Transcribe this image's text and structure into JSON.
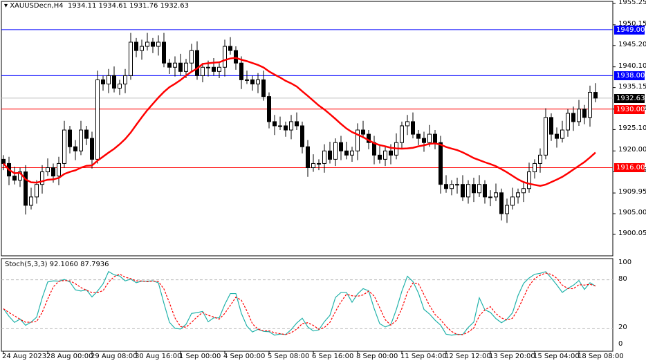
{
  "header": {
    "symbol_timeframe": "XAUUSDecn,H4",
    "ohlc": "1934.11 1934.61 1931.76 1932.63"
  },
  "stoch_label": "Stoch(5,3,3) 92.1060 87.7936",
  "colors": {
    "bull_candle": "#ffffff",
    "bear_candle": "#000000",
    "ma_line": "#ff0000",
    "stoch_main": "#20b2aa",
    "stoch_signal": "#ff0000",
    "blue_level": "#0000ff",
    "red_level": "#ff0000",
    "price_tag": "#000000"
  },
  "price_axis": {
    "max": 1955.25,
    "min": 1900.05,
    "labels": [
      "1955.25",
      "1950.15",
      "1945.20",
      "1940.10",
      "1935.15",
      "1930.00",
      "1925.10",
      "1920.00",
      "1915.05",
      "1909.95",
      "1905.00",
      "1900.05"
    ]
  },
  "levels": [
    {
      "price": 1949.0,
      "label": "1949.00",
      "color": "#0000ff"
    },
    {
      "price": 1938.0,
      "label": "1938.00",
      "color": "#0000ff"
    },
    {
      "price": 1930.0,
      "label": "1930.00",
      "color": "#ff0000"
    },
    {
      "price": 1916.0,
      "label": "1916.00",
      "color": "#ff0000"
    }
  ],
  "current_price": {
    "price": 1932.63,
    "label": "1932.63"
  },
  "stoch_axis": {
    "labels": [
      "100",
      "80",
      "20",
      "0"
    ],
    "levels": [
      100,
      80,
      20,
      0
    ]
  },
  "time_axis": [
    "24 Aug 2023",
    "28 Aug 00:00",
    "29 Aug 08:00",
    "30 Aug 16:00",
    "1 Sep 00:00",
    "4 Sep 00:00",
    "5 Sep 08:00",
    "6 Sep 16:00",
    "8 Sep 00:00",
    "11 Sep 04:00",
    "12 Sep 12:00",
    "13 Sep 20:00",
    "15 Sep 04:00",
    "18 Sep 08:00"
  ],
  "closes": [
    1917,
    1914,
    1913,
    1915,
    1907,
    1909,
    1912,
    1915,
    1916,
    1914,
    1917,
    1925,
    1921,
    1920,
    1925,
    1923,
    1918,
    1937,
    1936,
    1938,
    1935,
    1936,
    1938,
    1946,
    1944,
    1945,
    1946,
    1945,
    1946,
    1941,
    1940,
    1941,
    1939,
    1941,
    1944,
    1938,
    1940,
    1940,
    1939,
    1940,
    1945,
    1944,
    1941,
    1937,
    1937,
    1936,
    1937,
    1933,
    1927,
    1926,
    1926,
    1925,
    1927,
    1926,
    1921,
    1916,
    1917,
    1917,
    1920,
    1918,
    1922,
    1920,
    1919,
    1920,
    1925,
    1924,
    1922,
    1919,
    1918,
    1920,
    1919,
    1922,
    1926,
    1927,
    1924,
    1923,
    1922,
    1924,
    1922,
    1912,
    1911,
    1912,
    1912,
    1909,
    1912,
    1910,
    1912,
    1909,
    1909,
    1910,
    1905,
    1907,
    1909,
    1910,
    1911,
    1915,
    1917,
    1919,
    1928,
    1924,
    1923,
    1925,
    1929,
    1927,
    1930,
    1928,
    1934,
    1932.63
  ]
}
